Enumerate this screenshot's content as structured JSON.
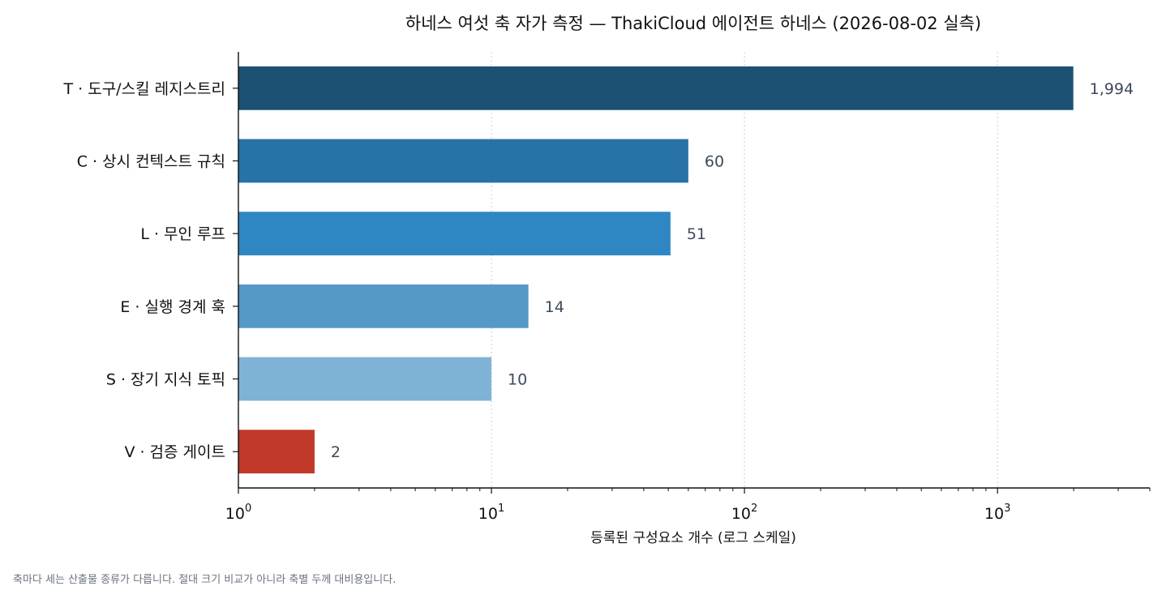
{
  "chart_data": {
    "type": "bar",
    "orientation": "horizontal",
    "title": "하네스 여섯 축 자가 측정 — ThakiCloud 에이전트 하네스 (2026-08-02 실측)",
    "xlabel": "등록된 구성요소 개수 (로그 스케일)",
    "ylabel": "",
    "x_scale": "log",
    "xlim": [
      1,
      4000
    ],
    "x_ticks": [
      {
        "value": 1,
        "base": "10",
        "exp": "0"
      },
      {
        "value": 10,
        "base": "10",
        "exp": "1"
      },
      {
        "value": 100,
        "base": "10",
        "exp": "2"
      },
      {
        "value": 1000,
        "base": "10",
        "exp": "3"
      }
    ],
    "grid": "vertical dotted at major ticks",
    "categories": [
      "T · 도구/스킬 레지스트리",
      "C · 상시 컨텍스트 규칙",
      "L · 무인 루프",
      "E · 실행 경계 훅",
      "S · 장기 지식 토픽",
      "V · 검증 게이트"
    ],
    "values": [
      1994,
      60,
      51,
      14,
      10,
      2
    ],
    "value_labels": [
      "1,994",
      "60",
      "51",
      "14",
      "10",
      "2"
    ],
    "colors": [
      "#1c5174",
      "#2873a6",
      "#2e87c2",
      "#5499c7",
      "#7fb3d5",
      "#c0392b"
    ]
  },
  "footnote": "축마다 세는 산출물 종류가 다릅니다. 절대 크기 비교가 아니라 축별 두께 대비용입니다."
}
